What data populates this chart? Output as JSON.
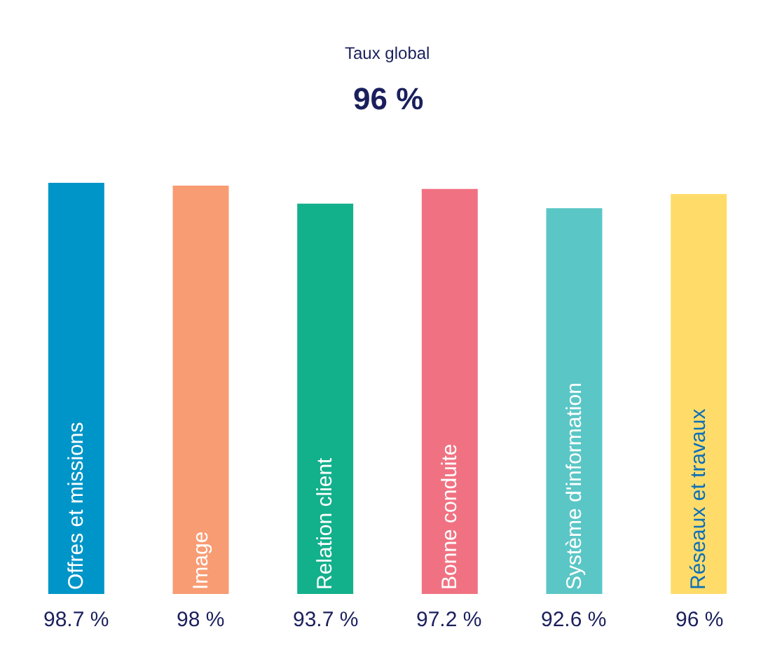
{
  "chart_data": {
    "type": "bar",
    "title": "Taux global",
    "subtitle": "96 %",
    "categories": [
      "Offres et missions",
      "Image",
      "Relation client",
      "Bonne conduite",
      "Système d'information",
      "Réseaux et travaux"
    ],
    "values": [
      98.7,
      98,
      93.7,
      97.2,
      92.6,
      96
    ],
    "value_labels": [
      "98.7 %",
      "98 %",
      "93.7 %",
      "97.2 %",
      "92.6 %",
      "96 %"
    ],
    "colors": [
      "#0095c8",
      "#f89c74",
      "#13b08c",
      "#f07282",
      "#5bc6c6",
      "#ffdc6a"
    ],
    "legend": false
  }
}
